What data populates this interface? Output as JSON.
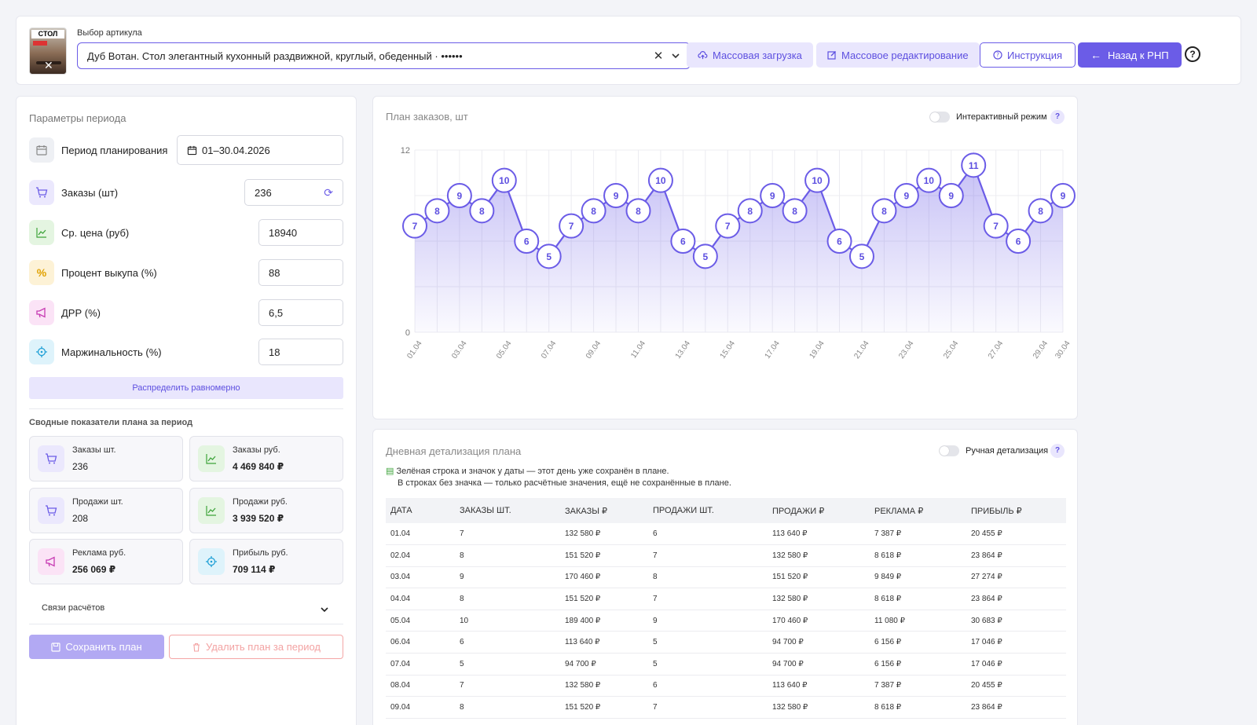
{
  "topbar": {
    "select_label": "Выбор артикула",
    "selected_value": "Дуб Вотан. Стол элегантный кухонный раздвижной, круглый, обеденный · ••••••",
    "thumb_text": "СТОЛ",
    "btn_mass_upload": "Массовая загрузка",
    "btn_mass_edit": "Массовое редактирование",
    "btn_instruction": "Инструкция",
    "btn_back": "Назад к РНП",
    "help": "?"
  },
  "params": {
    "title": "Параметры периода",
    "rows": [
      {
        "label": "Период планирования",
        "value": "01–30.04.2026",
        "icon": "calendar-icon"
      },
      {
        "label": "Заказы (шт)",
        "value": "236",
        "icon": "cart-icon"
      },
      {
        "label": "Ср. цена (руб)",
        "value": "18940",
        "icon": "trend-icon"
      },
      {
        "label": "Процент выкупа (%)",
        "value": "88",
        "icon": "percent-icon"
      },
      {
        "label": "ДРР (%)",
        "value": "6,5",
        "icon": "megaphone-icon"
      },
      {
        "label": "Маржинальность (%)",
        "value": "18",
        "icon": "target-icon"
      }
    ],
    "distribute_btn": "Распределить равномерно"
  },
  "summary": {
    "title": "Сводные показатели плана за период",
    "tiles": [
      {
        "label": "Заказы шт.",
        "value": "236"
      },
      {
        "label": "Заказы руб.",
        "value": "4 469 840 ₽"
      },
      {
        "label": "Продажи шт.",
        "value": "208"
      },
      {
        "label": "Продажи руб.",
        "value": "3 939 520 ₽"
      },
      {
        "label": "Реклама руб.",
        "value": "256 069 ₽"
      },
      {
        "label": "Прибыль руб.",
        "value": "709 114 ₽"
      }
    ],
    "links_label": "Связи расчётов",
    "save_btn": "Сохранить план",
    "delete_btn": "Удалить план за период"
  },
  "chart_card": {
    "title": "План заказов, шт",
    "interactive_label": "Интерактивный режим",
    "help": "?"
  },
  "chart_data": {
    "type": "area",
    "x": [
      "01.04",
      "02.04",
      "03.04",
      "04.04",
      "05.04",
      "06.04",
      "07.04",
      "08.04",
      "09.04",
      "10.04",
      "11.04",
      "12.04",
      "13.04",
      "14.04",
      "15.04",
      "16.04",
      "17.04",
      "18.04",
      "19.04",
      "20.04",
      "21.04",
      "22.04",
      "23.04",
      "24.04",
      "25.04",
      "26.04",
      "27.04",
      "28.04",
      "29.04",
      "30.04"
    ],
    "x_tick_labels": [
      "01.04",
      "03.04",
      "05.04",
      "07.04",
      "09.04",
      "11.04",
      "13.04",
      "15.04",
      "17.04",
      "19.04",
      "21.04",
      "23.04",
      "25.04",
      "27.04",
      "29.04",
      "30.04"
    ],
    "values": [
      7,
      8,
      9,
      8,
      10,
      6,
      5,
      7,
      8,
      9,
      8,
      10,
      6,
      5,
      7,
      8,
      9,
      8,
      10,
      6,
      5,
      8,
      9,
      10,
      9,
      11,
      7,
      6,
      8,
      9
    ],
    "ylim": [
      0,
      12
    ],
    "y_tick_labels": [
      "0",
      "12"
    ],
    "grid": true,
    "color": "#6b5ce7"
  },
  "table_card": {
    "title": "Дневная детализация плана",
    "manual_label": "Ручная детализация",
    "help": "?",
    "note1": "Зелёная строка и значок у даты — этот день уже сохранён в плане.",
    "note2": "В строках без значка — только расчётные значения, ещё не сохранённые в плане.",
    "columns": [
      "ДАТА",
      "ЗАКАЗЫ ШТ.",
      "ЗАКАЗЫ ₽",
      "ПРОДАЖИ ШТ.",
      "ПРОДАЖИ ₽",
      "РЕКЛАМА ₽",
      "ПРИБЫЛЬ ₽"
    ],
    "rows": [
      [
        "01.04",
        "7",
        "132 580 ₽",
        "6",
        "113 640 ₽",
        "7 387 ₽",
        "20 455 ₽"
      ],
      [
        "02.04",
        "8",
        "151 520 ₽",
        "7",
        "132 580 ₽",
        "8 618 ₽",
        "23 864 ₽"
      ],
      [
        "03.04",
        "9",
        "170 460 ₽",
        "8",
        "151 520 ₽",
        "9 849 ₽",
        "27 274 ₽"
      ],
      [
        "04.04",
        "8",
        "151 520 ₽",
        "7",
        "132 580 ₽",
        "8 618 ₽",
        "23 864 ₽"
      ],
      [
        "05.04",
        "10",
        "189 400 ₽",
        "9",
        "170 460 ₽",
        "11 080 ₽",
        "30 683 ₽"
      ],
      [
        "06.04",
        "6",
        "113 640 ₽",
        "5",
        "94 700 ₽",
        "6 156 ₽",
        "17 046 ₽"
      ],
      [
        "07.04",
        "5",
        "94 700 ₽",
        "5",
        "94 700 ₽",
        "6 156 ₽",
        "17 046 ₽"
      ],
      [
        "08.04",
        "7",
        "132 580 ₽",
        "6",
        "113 640 ₽",
        "7 387 ₽",
        "20 455 ₽"
      ],
      [
        "09.04",
        "8",
        "151 520 ₽",
        "7",
        "132 580 ₽",
        "8 618 ₽",
        "23 864 ₽"
      ]
    ]
  }
}
